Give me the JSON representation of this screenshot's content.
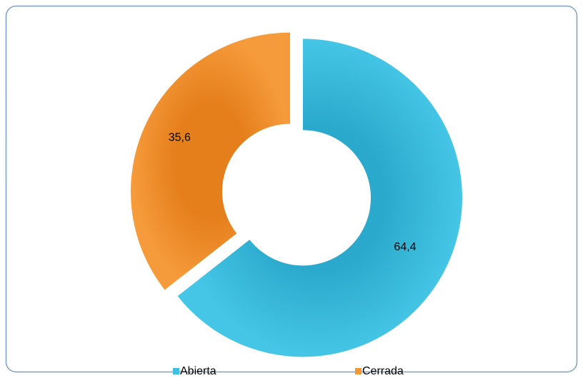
{
  "chart_data": {
    "type": "donut",
    "categories": [
      "Abierta",
      "Cerrada"
    ],
    "values": [
      64.4,
      35.6
    ],
    "value_labels": [
      "64,4",
      "35,6"
    ],
    "colors": [
      "#3ec0e2",
      "#f39634"
    ],
    "legend": "bottom"
  }
}
